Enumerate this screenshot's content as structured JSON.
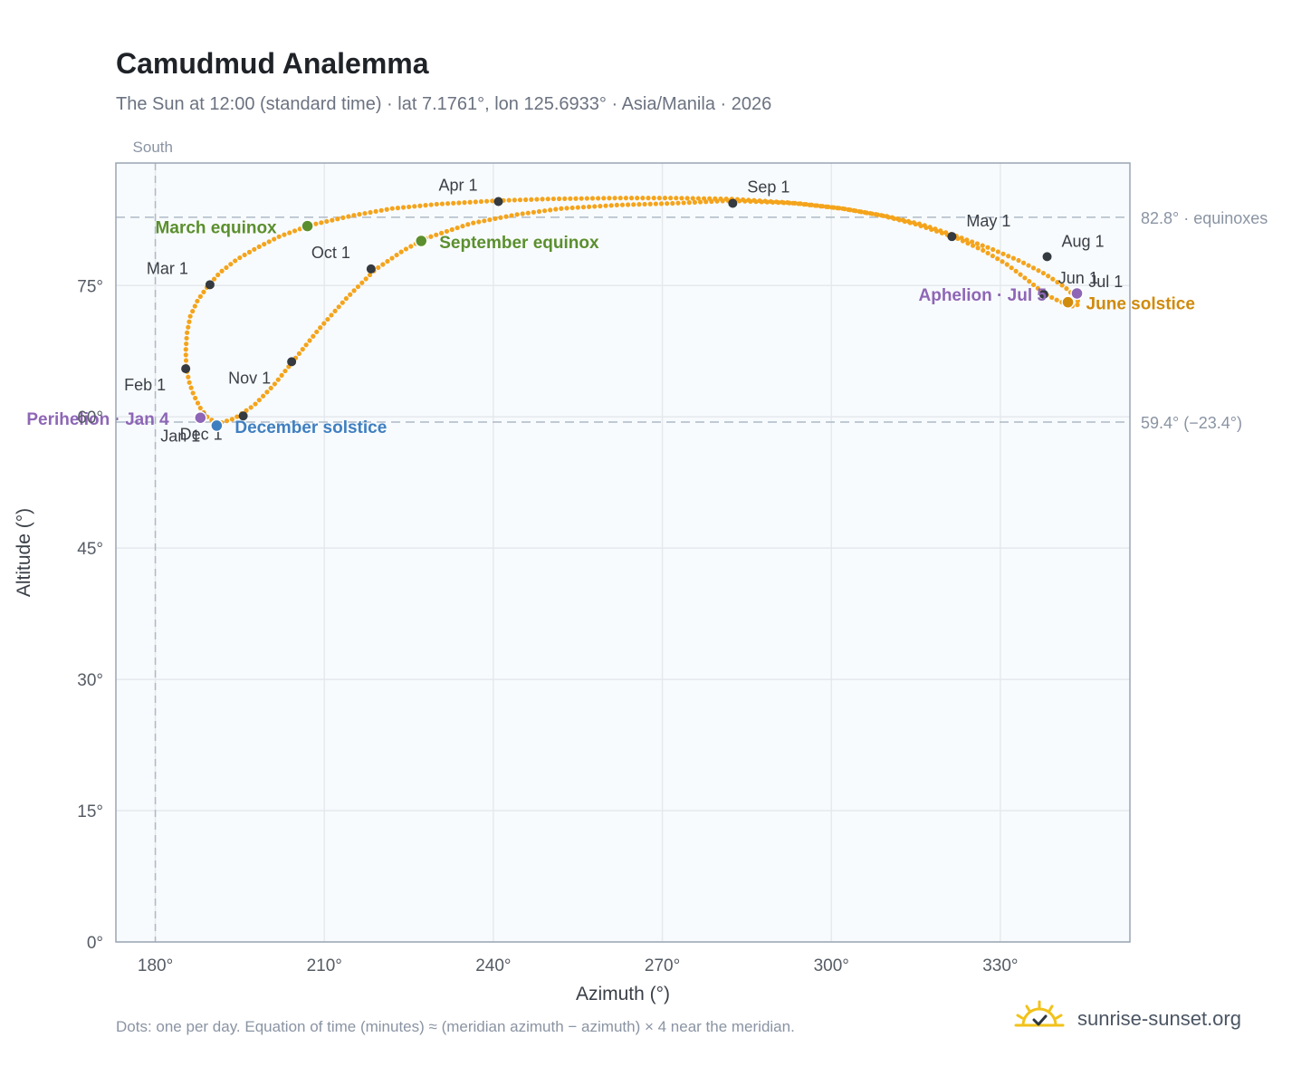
{
  "header": {
    "title": "Camudmud Analemma",
    "subtitle": "The Sun at 12:00 (standard time) · lat 7.1761°, lon 125.6933° · Asia/Manila · 2026"
  },
  "footer": {
    "note": "Dots: one per day. Equation of time (minutes) ≈ (meridian azimuth − azimuth) × 4 near the meridian.",
    "brand": "sunrise-sunset.org"
  },
  "colors": {
    "path": "#f4a41c",
    "month_marker": "#343a40",
    "equinox": "#5b8f2e",
    "december_solstice": "#3f7fc0",
    "june_solstice": "#d08a0c",
    "apsis": "#8e66b6",
    "grid": "#e5e9ee",
    "plot_bg": "#f8fbfd",
    "frame": "#9aa5b3",
    "reference_line": "#aebac8"
  },
  "chart_data": {
    "type": "scatter",
    "xlabel": "Azimuth (°)",
    "ylabel": "Altitude (°)",
    "xlim": [
      173,
      353
    ],
    "ylim": [
      0,
      89
    ],
    "xticks": [
      180,
      210,
      240,
      270,
      300,
      330
    ],
    "xtick_labels": [
      "180°",
      "210°",
      "240°",
      "270°",
      "300°",
      "330°"
    ],
    "yticks": [
      0,
      15,
      30,
      45,
      60,
      75
    ],
    "ytick_labels": [
      "0°",
      "15°",
      "30°",
      "45°",
      "60°",
      "75°"
    ],
    "grid": true,
    "meridian_label": "South",
    "meridian_azimuth": 180,
    "reference_lines": [
      {
        "altitude": 82.8,
        "label": "82.8° · equinoxes"
      },
      {
        "altitude": 59.4,
        "label": "59.4° (−23.4°)"
      }
    ],
    "path_description": "Dots: one per day",
    "path_points": [
      [
        189.2,
        60.0
      ],
      [
        188.0,
        61.0
      ],
      [
        186.8,
        62.5
      ],
      [
        186.0,
        64.0
      ],
      [
        185.5,
        65.6
      ],
      [
        185.4,
        67.5
      ],
      [
        185.6,
        69.5
      ],
      [
        186.2,
        71.5
      ],
      [
        187.5,
        73.3
      ],
      [
        189.4,
        75.0
      ],
      [
        191.5,
        76.5
      ],
      [
        194.5,
        78.0
      ],
      [
        198.0,
        79.3
      ],
      [
        202.0,
        80.6
      ],
      [
        207.5,
        81.9
      ],
      [
        215.0,
        83.0
      ],
      [
        222.0,
        83.8
      ],
      [
        230.0,
        84.3
      ],
      [
        240.5,
        84.7
      ],
      [
        250.0,
        84.9
      ],
      [
        262.0,
        85.0
      ],
      [
        272.0,
        85.0
      ],
      [
        282.0,
        84.9
      ],
      [
        292.0,
        84.5
      ],
      [
        302.0,
        83.8
      ],
      [
        310.0,
        82.9
      ],
      [
        316.0,
        82.0
      ],
      [
        322.0,
        80.7
      ],
      [
        328.0,
        79.3
      ],
      [
        333.5,
        77.8
      ],
      [
        338.0,
        76.3
      ],
      [
        341.5,
        74.8
      ],
      [
        343.5,
        73.6
      ],
      [
        344.0,
        72.9
      ],
      [
        343.0,
        72.6
      ],
      [
        340.5,
        73.2
      ],
      [
        338.0,
        74.0
      ],
      [
        334.5,
        75.8
      ],
      [
        331.0,
        77.5
      ],
      [
        327.0,
        79.0
      ],
      [
        322.0,
        80.5
      ],
      [
        315.0,
        82.0
      ],
      [
        309.0,
        83.0
      ],
      [
        302.0,
        83.8
      ],
      [
        294.0,
        84.4
      ],
      [
        282.0,
        84.7
      ],
      [
        272.0,
        84.4
      ],
      [
        262.0,
        84.2
      ],
      [
        252.0,
        83.8
      ],
      [
        244.0,
        83.1
      ],
      [
        236.0,
        82.1
      ],
      [
        228.0,
        80.4
      ],
      [
        224.0,
        79.0
      ],
      [
        219.0,
        76.8
      ],
      [
        214.0,
        73.6
      ],
      [
        209.0,
        70.0
      ],
      [
        204.5,
        66.4
      ],
      [
        201.0,
        63.6
      ],
      [
        197.5,
        61.3
      ],
      [
        194.0,
        59.8
      ],
      [
        191.0,
        59.2
      ],
      [
        189.2,
        60.0
      ]
    ],
    "month_markers": [
      {
        "label": "Jan 1",
        "azimuth": 188.3,
        "altitude": 60.1
      },
      {
        "label": "Feb 1",
        "azimuth": 185.4,
        "altitude": 65.5
      },
      {
        "label": "Mar 1",
        "azimuth": 189.7,
        "altitude": 75.1
      },
      {
        "label": "Apr 1",
        "azimuth": 240.9,
        "altitude": 84.6
      },
      {
        "label": "May 1",
        "azimuth": 321.4,
        "altitude": 80.6
      },
      {
        "label": "Jun 1",
        "azimuth": 337.7,
        "altitude": 74.0
      },
      {
        "label": "Jul 1",
        "azimuth": 343.4,
        "altitude": 73.9
      },
      {
        "label": "Aug 1",
        "azimuth": 338.3,
        "altitude": 78.3
      },
      {
        "label": "Sep 1",
        "azimuth": 282.5,
        "altitude": 84.4
      },
      {
        "label": "Oct 1",
        "azimuth": 218.3,
        "altitude": 76.9
      },
      {
        "label": "Nov 1",
        "azimuth": 204.2,
        "altitude": 66.3
      },
      {
        "label": "Dec 1",
        "azimuth": 195.6,
        "altitude": 60.1
      }
    ],
    "special_points": [
      {
        "label": "March equinox",
        "azimuth": 207.0,
        "altitude": 81.8,
        "role": "equinox"
      },
      {
        "label": "September equinox",
        "azimuth": 227.2,
        "altitude": 80.1,
        "role": "equinox"
      },
      {
        "label": "June solstice",
        "azimuth": 342.0,
        "altitude": 73.1,
        "role": "june_solstice"
      },
      {
        "label": "December solstice",
        "azimuth": 190.9,
        "altitude": 59.0,
        "role": "december_solstice"
      },
      {
        "label": "Perihelion · Jan 4",
        "azimuth": 188.0,
        "altitude": 59.9,
        "role": "apsis"
      },
      {
        "label": "Aphelion · Jul 5",
        "azimuth": 343.6,
        "altitude": 74.1,
        "role": "apsis"
      }
    ]
  }
}
